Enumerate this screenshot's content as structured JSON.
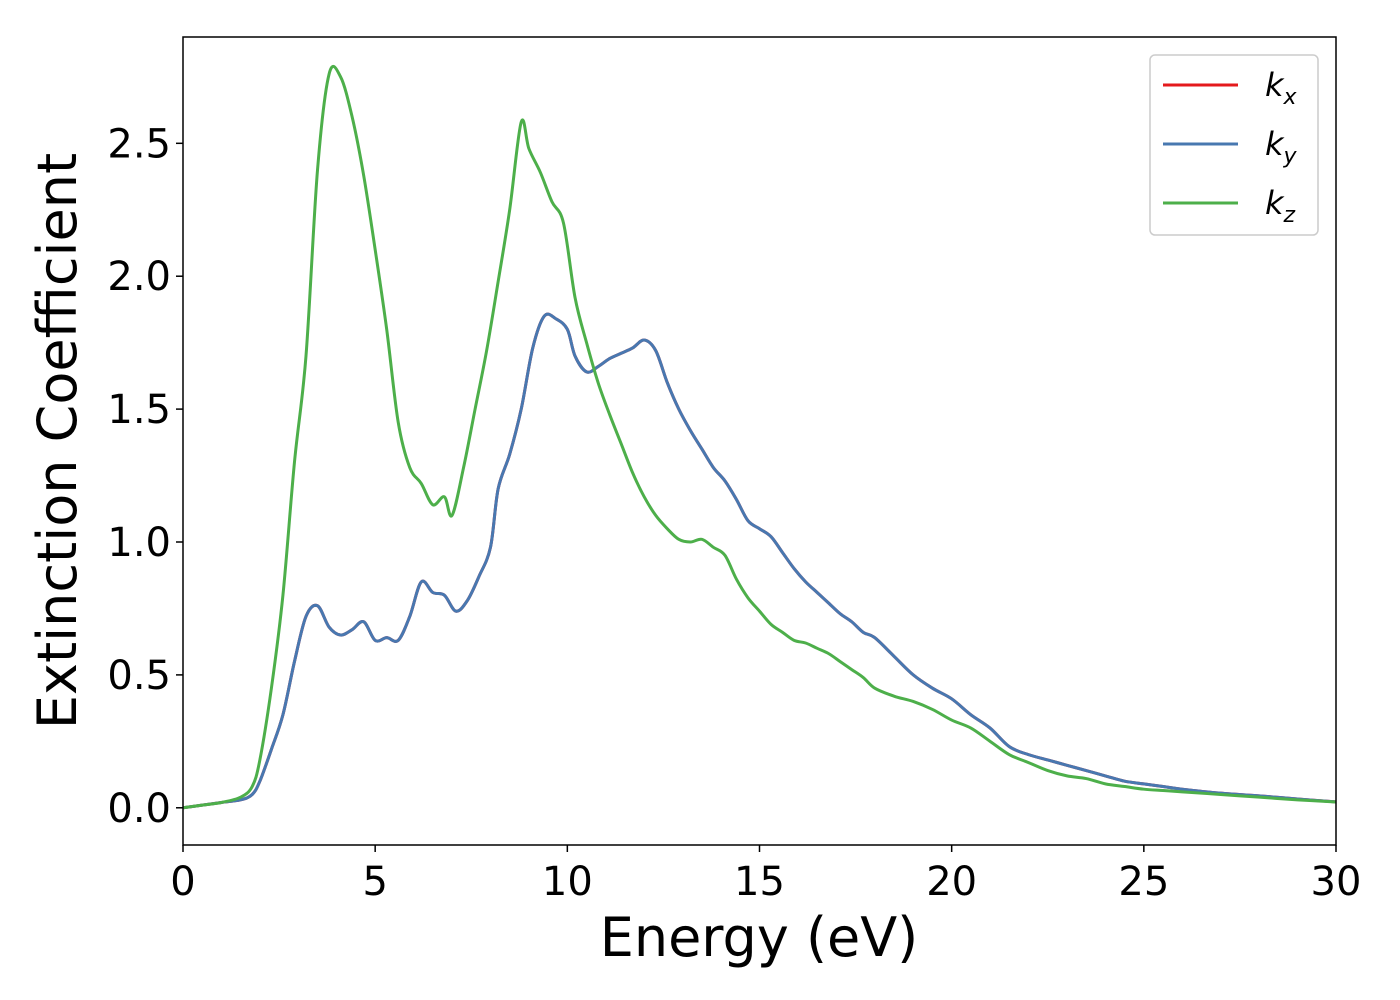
{
  "chart_data": {
    "type": "line",
    "title": "",
    "xlabel": "Energy (eV)",
    "ylabel": "Extinction Coefficient",
    "xlim": [
      0,
      30
    ],
    "ylim": [
      -0.14,
      2.9
    ],
    "x_ticks": [
      0,
      5,
      10,
      15,
      20,
      25,
      30
    ],
    "x_tick_labels": [
      "0",
      "5",
      "10",
      "15",
      "20",
      "25",
      "30"
    ],
    "y_ticks": [
      0.0,
      0.5,
      1.0,
      1.5,
      2.0,
      2.5
    ],
    "y_tick_labels": [
      "0.0",
      "0.5",
      "1.0",
      "1.5",
      "2.0",
      "2.5"
    ],
    "grid": false,
    "legend_position": "top-right",
    "series": [
      {
        "name": "k_x",
        "label_base": "k",
        "label_sub": "x",
        "color": "#e41a1c",
        "x": [
          0,
          0.5,
          1,
          1.5,
          1.8,
          2.0,
          2.3,
          2.6,
          2.9,
          3.2,
          3.5,
          3.8,
          4.1,
          4.4,
          4.7,
          5.0,
          5.3,
          5.6,
          5.9,
          6.2,
          6.5,
          6.8,
          7.1,
          7.4,
          7.7,
          8.0,
          8.2,
          8.5,
          8.8,
          9.1,
          9.4,
          9.7,
          10.0,
          10.2,
          10.5,
          10.8,
          11.1,
          11.4,
          11.7,
          12.0,
          12.3,
          12.6,
          12.9,
          13.2,
          13.5,
          13.8,
          14.1,
          14.4,
          14.7,
          15.0,
          15.3,
          15.6,
          15.9,
          16.2,
          16.5,
          16.8,
          17.1,
          17.4,
          17.7,
          18.0,
          18.5,
          19.0,
          19.5,
          20.0,
          20.5,
          21.0,
          21.5,
          22.0,
          22.5,
          23.0,
          23.5,
          24.0,
          24.5,
          25.0,
          25.5,
          26.0,
          27.0,
          28.0,
          29.0,
          30.0
        ],
        "y": [
          0.0,
          0.01,
          0.02,
          0.03,
          0.05,
          0.1,
          0.22,
          0.35,
          0.55,
          0.72,
          0.76,
          0.68,
          0.65,
          0.67,
          0.7,
          0.63,
          0.64,
          0.63,
          0.72,
          0.85,
          0.81,
          0.8,
          0.74,
          0.78,
          0.87,
          0.98,
          1.2,
          1.33,
          1.5,
          1.73,
          1.85,
          1.84,
          1.8,
          1.7,
          1.64,
          1.66,
          1.69,
          1.71,
          1.73,
          1.76,
          1.72,
          1.6,
          1.5,
          1.42,
          1.35,
          1.28,
          1.23,
          1.16,
          1.08,
          1.05,
          1.02,
          0.96,
          0.9,
          0.85,
          0.81,
          0.77,
          0.73,
          0.7,
          0.66,
          0.64,
          0.57,
          0.5,
          0.45,
          0.41,
          0.35,
          0.3,
          0.23,
          0.2,
          0.18,
          0.16,
          0.14,
          0.12,
          0.1,
          0.09,
          0.08,
          0.07,
          0.055,
          0.045,
          0.033,
          0.022
        ]
      },
      {
        "name": "k_y",
        "label_base": "k",
        "label_sub": "y",
        "color": "#4878b0",
        "x": [
          0,
          0.5,
          1,
          1.5,
          1.8,
          2.0,
          2.3,
          2.6,
          2.9,
          3.2,
          3.5,
          3.8,
          4.1,
          4.4,
          4.7,
          5.0,
          5.3,
          5.6,
          5.9,
          6.2,
          6.5,
          6.8,
          7.1,
          7.4,
          7.7,
          8.0,
          8.2,
          8.5,
          8.8,
          9.1,
          9.4,
          9.7,
          10.0,
          10.2,
          10.5,
          10.8,
          11.1,
          11.4,
          11.7,
          12.0,
          12.3,
          12.6,
          12.9,
          13.2,
          13.5,
          13.8,
          14.1,
          14.4,
          14.7,
          15.0,
          15.3,
          15.6,
          15.9,
          16.2,
          16.5,
          16.8,
          17.1,
          17.4,
          17.7,
          18.0,
          18.5,
          19.0,
          19.5,
          20.0,
          20.5,
          21.0,
          21.5,
          22.0,
          22.5,
          23.0,
          23.5,
          24.0,
          24.5,
          25.0,
          25.5,
          26.0,
          27.0,
          28.0,
          29.0,
          30.0
        ],
        "y": [
          0.0,
          0.01,
          0.02,
          0.03,
          0.05,
          0.1,
          0.22,
          0.35,
          0.55,
          0.72,
          0.76,
          0.68,
          0.65,
          0.67,
          0.7,
          0.63,
          0.64,
          0.63,
          0.72,
          0.85,
          0.81,
          0.8,
          0.74,
          0.78,
          0.87,
          0.98,
          1.2,
          1.33,
          1.5,
          1.73,
          1.85,
          1.84,
          1.8,
          1.7,
          1.64,
          1.66,
          1.69,
          1.71,
          1.73,
          1.76,
          1.72,
          1.6,
          1.5,
          1.42,
          1.35,
          1.28,
          1.23,
          1.16,
          1.08,
          1.05,
          1.02,
          0.96,
          0.9,
          0.85,
          0.81,
          0.77,
          0.73,
          0.7,
          0.66,
          0.64,
          0.57,
          0.5,
          0.45,
          0.41,
          0.35,
          0.3,
          0.23,
          0.2,
          0.18,
          0.16,
          0.14,
          0.12,
          0.1,
          0.09,
          0.08,
          0.07,
          0.055,
          0.045,
          0.033,
          0.022
        ]
      },
      {
        "name": "k_z",
        "label_base": "k",
        "label_sub": "z",
        "color": "#4daf4a",
        "x": [
          0,
          0.5,
          1,
          1.5,
          1.8,
          2.0,
          2.3,
          2.6,
          2.9,
          3.2,
          3.5,
          3.8,
          4.1,
          4.4,
          4.7,
          5.0,
          5.3,
          5.6,
          5.9,
          6.2,
          6.5,
          6.8,
          7.0,
          7.3,
          7.6,
          7.9,
          8.2,
          8.5,
          8.8,
          9.0,
          9.3,
          9.6,
          9.9,
          10.2,
          10.5,
          10.8,
          11.1,
          11.4,
          11.7,
          12.0,
          12.3,
          12.6,
          12.9,
          13.2,
          13.5,
          13.8,
          14.1,
          14.4,
          14.7,
          15.0,
          15.3,
          15.6,
          15.9,
          16.2,
          16.5,
          16.8,
          17.1,
          17.4,
          17.7,
          18.0,
          18.5,
          19.0,
          19.5,
          20.0,
          20.5,
          21.0,
          21.5,
          22.0,
          22.5,
          23.0,
          23.5,
          24.0,
          24.5,
          25.0,
          25.5,
          26.0,
          27.0,
          28.0,
          29.0,
          30.0
        ],
        "y": [
          0.0,
          0.01,
          0.02,
          0.04,
          0.08,
          0.18,
          0.45,
          0.8,
          1.3,
          1.7,
          2.4,
          2.76,
          2.75,
          2.6,
          2.38,
          2.1,
          1.8,
          1.45,
          1.28,
          1.22,
          1.14,
          1.17,
          1.1,
          1.28,
          1.5,
          1.72,
          1.98,
          2.25,
          2.58,
          2.48,
          2.39,
          2.28,
          2.2,
          1.92,
          1.75,
          1.6,
          1.48,
          1.37,
          1.26,
          1.17,
          1.1,
          1.05,
          1.01,
          1.0,
          1.01,
          0.98,
          0.95,
          0.86,
          0.79,
          0.74,
          0.69,
          0.66,
          0.63,
          0.62,
          0.6,
          0.58,
          0.55,
          0.52,
          0.49,
          0.45,
          0.42,
          0.4,
          0.37,
          0.33,
          0.3,
          0.25,
          0.2,
          0.17,
          0.14,
          0.12,
          0.11,
          0.09,
          0.08,
          0.07,
          0.065,
          0.06,
          0.05,
          0.04,
          0.03,
          0.022
        ]
      }
    ]
  }
}
